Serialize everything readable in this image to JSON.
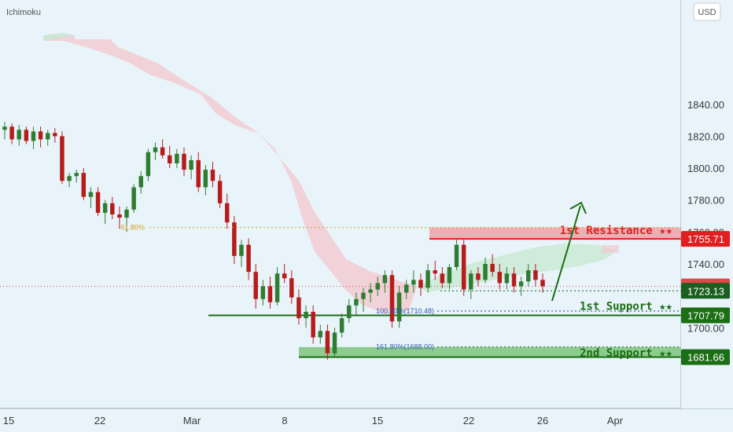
{
  "indicator_label": "Ichimoku",
  "currency_button": "USD",
  "colors": {
    "background": "#e8f4fa",
    "up": "#2e7d32",
    "down": "#b71c1c",
    "resistance_fill": "#f0a0a8",
    "resistance_line": "#e02020",
    "support_line": "#1b6e14",
    "support_fill": "#7cc47a",
    "cloud_red": "#f3c9cf",
    "cloud_green": "#c8e8d2",
    "fib_orange": "#d4a020",
    "fib_blue": "#3060b0"
  },
  "chart_data": {
    "type": "candlestick",
    "y_axis": {
      "range": [
        1670,
        1845
      ],
      "ticks": [
        "1840.00",
        "1820.00",
        "1800.00",
        "1780.00",
        "1760.00",
        "1740.00",
        "1700.00"
      ]
    },
    "x_axis": {
      "ticks": [
        "15",
        "22",
        "Mar",
        "8",
        "15",
        "22",
        "26",
        "Apr"
      ]
    },
    "price_labels": [
      {
        "value": "1755.71",
        "price": 1755.71,
        "color": "#e02020"
      },
      {
        "value": "1725.89",
        "price": 1725.89,
        "color": "#e04848"
      },
      {
        "value": "1723.13",
        "price": 1723.13,
        "color": "#1b5e20"
      },
      {
        "value": "1707.79",
        "price": 1707.79,
        "color": "#1b6e14"
      },
      {
        "value": "1681.66",
        "price": 1681.66,
        "color": "#1b6e14"
      }
    ],
    "zones": [
      {
        "name": "1st Resistance ★★",
        "from": 1755.71,
        "to": 1762.8,
        "kind": "resistance"
      },
      {
        "name": "1st Support ★★",
        "level": 1707.79,
        "kind": "support"
      },
      {
        "name": "2nd Support ★★",
        "from": 1681.66,
        "to": 1687.9,
        "kind": "support"
      }
    ],
    "fib_labels": [
      {
        "text": "61.80%",
        "price": 1762.8
      },
      {
        "text": "100.00%(1710.48)",
        "price": 1710.48
      },
      {
        "text": "161.80%(1688.00)",
        "price": 1688.0
      }
    ],
    "candles": [
      [
        1824,
        1829,
        1818,
        1826
      ],
      [
        1826,
        1828,
        1815,
        1818
      ],
      [
        1818,
        1827,
        1814,
        1824
      ],
      [
        1824,
        1826,
        1815,
        1817
      ],
      [
        1817,
        1826,
        1812,
        1823
      ],
      [
        1823,
        1826,
        1813,
        1818
      ],
      [
        1818,
        1824,
        1814,
        1822
      ],
      [
        1822,
        1825,
        1816,
        1820
      ],
      [
        1820,
        1823,
        1790,
        1792
      ],
      [
        1792,
        1797,
        1788,
        1795
      ],
      [
        1795,
        1799,
        1791,
        1797
      ],
      [
        1797,
        1800,
        1780,
        1782
      ],
      [
        1782,
        1788,
        1775,
        1785
      ],
      [
        1785,
        1788,
        1770,
        1772
      ],
      [
        1772,
        1780,
        1765,
        1778
      ],
      [
        1778,
        1782,
        1768,
        1771
      ],
      [
        1771,
        1776,
        1762,
        1769
      ],
      [
        1769,
        1776,
        1760,
        1774
      ],
      [
        1774,
        1790,
        1772,
        1788
      ],
      [
        1788,
        1798,
        1784,
        1795
      ],
      [
        1795,
        1812,
        1792,
        1810
      ],
      [
        1810,
        1816,
        1805,
        1813
      ],
      [
        1813,
        1818,
        1806,
        1808
      ],
      [
        1808,
        1814,
        1800,
        1803
      ],
      [
        1803,
        1812,
        1800,
        1809
      ],
      [
        1809,
        1813,
        1795,
        1799
      ],
      [
        1799,
        1808,
        1793,
        1805
      ],
      [
        1805,
        1810,
        1785,
        1788
      ],
      [
        1788,
        1802,
        1783,
        1799
      ],
      [
        1799,
        1804,
        1788,
        1792
      ],
      [
        1792,
        1796,
        1775,
        1778
      ],
      [
        1778,
        1784,
        1762,
        1766
      ],
      [
        1766,
        1770,
        1740,
        1745
      ],
      [
        1745,
        1755,
        1738,
        1752
      ],
      [
        1752,
        1756,
        1730,
        1735
      ],
      [
        1735,
        1740,
        1712,
        1718
      ],
      [
        1718,
        1730,
        1714,
        1726
      ],
      [
        1726,
        1732,
        1712,
        1716
      ],
      [
        1716,
        1738,
        1714,
        1734
      ],
      [
        1734,
        1740,
        1728,
        1731
      ],
      [
        1731,
        1736,
        1715,
        1719
      ],
      [
        1719,
        1724,
        1702,
        1706
      ],
      [
        1706,
        1714,
        1700,
        1710
      ],
      [
        1710,
        1714,
        1690,
        1694
      ],
      [
        1694,
        1702,
        1690,
        1698
      ],
      [
        1698,
        1702,
        1680,
        1684
      ],
      [
        1684,
        1700,
        1682,
        1697
      ],
      [
        1697,
        1709,
        1694,
        1706
      ],
      [
        1706,
        1718,
        1703,
        1714
      ],
      [
        1714,
        1722,
        1708,
        1718
      ],
      [
        1718,
        1725,
        1710,
        1722
      ],
      [
        1722,
        1728,
        1716,
        1724
      ],
      [
        1724,
        1732,
        1720,
        1728
      ],
      [
        1728,
        1736,
        1722,
        1733
      ],
      [
        1733,
        1736,
        1700,
        1704
      ],
      [
        1704,
        1726,
        1700,
        1722
      ],
      [
        1722,
        1730,
        1718,
        1727
      ],
      [
        1727,
        1736,
        1722,
        1730
      ],
      [
        1730,
        1734,
        1720,
        1725
      ],
      [
        1725,
        1740,
        1722,
        1736
      ],
      [
        1736,
        1742,
        1730,
        1734
      ],
      [
        1734,
        1738,
        1725,
        1728
      ],
      [
        1728,
        1740,
        1724,
        1738
      ],
      [
        1738,
        1756,
        1736,
        1752
      ],
      [
        1752,
        1755,
        1720,
        1724
      ],
      [
        1724,
        1736,
        1718,
        1734
      ],
      [
        1734,
        1738,
        1726,
        1730
      ],
      [
        1730,
        1744,
        1728,
        1740
      ],
      [
        1740,
        1746,
        1732,
        1735
      ],
      [
        1735,
        1740,
        1724,
        1728
      ],
      [
        1728,
        1738,
        1724,
        1734
      ],
      [
        1734,
        1738,
        1722,
        1726
      ],
      [
        1726,
        1732,
        1720,
        1729
      ],
      [
        1729,
        1740,
        1726,
        1736
      ],
      [
        1736,
        1740,
        1726,
        1730
      ],
      [
        1730,
        1734,
        1722,
        1726
      ]
    ]
  }
}
